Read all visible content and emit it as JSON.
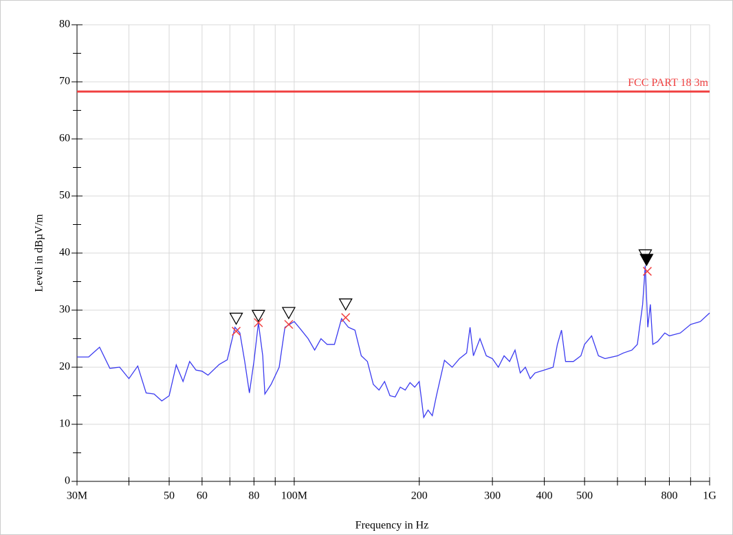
{
  "chart_data": {
    "type": "line",
    "xlabel": "Frequency in Hz",
    "ylabel": "Level in dBµV/m",
    "xscale": "log",
    "grid": true,
    "xlim": [
      30000000,
      1000000000
    ],
    "ylim": [
      0,
      80
    ],
    "xticks": [
      {
        "value": 30000000,
        "label": "30M"
      },
      {
        "value": 50000000,
        "label": "50"
      },
      {
        "value": 60000000,
        "label": "60"
      },
      {
        "value": 80000000,
        "label": "80"
      },
      {
        "value": 100000000,
        "label": "100M"
      },
      {
        "value": 200000000,
        "label": "200"
      },
      {
        "value": 300000000,
        "label": "300"
      },
      {
        "value": 400000000,
        "label": "400"
      },
      {
        "value": 500000000,
        "label": "500"
      },
      {
        "value": 800000000,
        "label": "800"
      },
      {
        "value": 1000000000,
        "label": "1G"
      }
    ],
    "xminor": [
      40000000,
      70000000,
      90000000,
      600000000,
      700000000,
      900000000
    ],
    "yticks": [
      0,
      10,
      20,
      30,
      40,
      50,
      60,
      70,
      80
    ],
    "yminor": [
      5,
      15,
      25,
      35,
      45,
      55,
      65,
      75
    ],
    "series": [
      {
        "color": "#3a3af0",
        "x": [
          30000000,
          32000000,
          34000000,
          36000000,
          38000000,
          40000000,
          42000000,
          44000000,
          46000000,
          48000000,
          50000000,
          52000000,
          54000000,
          56000000,
          58000000,
          60000000,
          62000000,
          66000000,
          69000000,
          72000000,
          74000000,
          76000000,
          78000000,
          80000000,
          82000000,
          84000000,
          85000000,
          88000000,
          92000000,
          95000000,
          100000000,
          104000000,
          108000000,
          112000000,
          116000000,
          120000000,
          125000000,
          130000000,
          135000000,
          140000000,
          145000000,
          150000000,
          155000000,
          160000000,
          165000000,
          170000000,
          175000000,
          180000000,
          185000000,
          190000000,
          195000000,
          200000000,
          205000000,
          210000000,
          215000000,
          220000000,
          230000000,
          240000000,
          250000000,
          260000000,
          265000000,
          270000000,
          280000000,
          290000000,
          300000000,
          310000000,
          320000000,
          330000000,
          340000000,
          350000000,
          360000000,
          370000000,
          380000000,
          400000000,
          420000000,
          430000000,
          440000000,
          450000000,
          470000000,
          490000000,
          500000000,
          520000000,
          540000000,
          560000000,
          600000000,
          620000000,
          650000000,
          670000000,
          690000000,
          700000000,
          710000000,
          720000000,
          730000000,
          750000000,
          780000000,
          800000000,
          850000000,
          900000000,
          950000000,
          1000000000
        ],
        "values": [
          21.8,
          21.8,
          23.5,
          19.8,
          20,
          18,
          20.2,
          15.5,
          15.3,
          14.1,
          15,
          20.4,
          17.5,
          21,
          19.5,
          19.3,
          18.6,
          20.5,
          21.3,
          27,
          26,
          21,
          15.5,
          21,
          27.8,
          22,
          15.3,
          17,
          20,
          27,
          28,
          26.5,
          25,
          23,
          25,
          24,
          24,
          28.5,
          27,
          26.5,
          22,
          21,
          17,
          16,
          17.5,
          15,
          14.8,
          16.5,
          16,
          17.3,
          16.5,
          17.5,
          11.2,
          12.5,
          11.5,
          15,
          21.2,
          20,
          21.5,
          22.5,
          27,
          22,
          25,
          22,
          21.5,
          20,
          22,
          21,
          23,
          19,
          20,
          18,
          19,
          19.5,
          20,
          24,
          26.5,
          21,
          21,
          22,
          24,
          25.5,
          22,
          21.5,
          22,
          22.5,
          23,
          24,
          31,
          37.8,
          27,
          31,
          24,
          24.5,
          26,
          25.5,
          26,
          27.5,
          28,
          29.5
        ]
      },
      {
        "name": "FCC PART 18 3m",
        "color": "#f04040",
        "x": [
          30000000,
          1000000000
        ],
        "values": [
          68.3,
          68.3
        ]
      }
    ],
    "peaks": {
      "x": [
        72500000,
        82000000,
        97000000,
        133000000,
        700000000,
        705000000
      ],
      "values": [
        28.5,
        29,
        29.5,
        31,
        39.6,
        38.8
      ],
      "fill": [
        "none",
        "none",
        "none",
        "none",
        "none",
        "#000000"
      ]
    },
    "finals": {
      "x": [
        72500000,
        82000000,
        97000000,
        133000000,
        708000000
      ],
      "values": [
        26.3,
        27.8,
        27.5,
        28.7,
        36.8
      ],
      "color": "#f04040"
    }
  }
}
